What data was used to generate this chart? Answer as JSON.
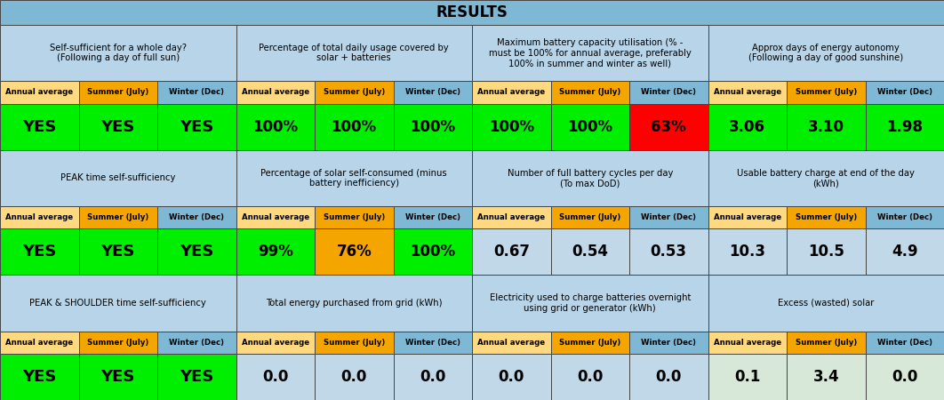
{
  "title": "RESULTS",
  "title_bg": "#7eb8d4",
  "header_bg": "#b8d4e8",
  "annual_avg_color": "#ffd97f",
  "summer_color": "#f5a500",
  "winter_color": "#7eb8d4",
  "green": "#00ee00",
  "red": "#ff0000",
  "orange": "#f5a500",
  "neutral": "#c0d8e8",
  "light_neutral": "#d8e8d8",
  "sections": [
    {
      "header": "Self-sufficient for a whole day?\n(Following a day of full sun)",
      "values": [
        "YES",
        "YES",
        "YES"
      ],
      "value_colors": [
        "#00ee00",
        "#00ee00",
        "#00ee00"
      ]
    },
    {
      "header": "Percentage of total daily usage covered by\nsolar + batteries",
      "values": [
        "100%",
        "100%",
        "100%"
      ],
      "value_colors": [
        "#00ee00",
        "#00ee00",
        "#00ee00"
      ]
    },
    {
      "header": "Maximum battery capacity utilisation (% -\nmust be 100% for annual average, preferably\n100% in summer and winter as well)",
      "values": [
        "100%",
        "100%",
        "63%"
      ],
      "value_colors": [
        "#00ee00",
        "#00ee00",
        "#ff0000"
      ]
    },
    {
      "header": "Approx days of energy autonomy\n(Following a day of good sunshine)",
      "values": [
        "3.06",
        "3.10",
        "1.98"
      ],
      "value_colors": [
        "#00ee00",
        "#00ee00",
        "#00ee00"
      ]
    },
    {
      "header": "PEAK time self-sufficiency",
      "values": [
        "YES",
        "YES",
        "YES"
      ],
      "value_colors": [
        "#00ee00",
        "#00ee00",
        "#00ee00"
      ]
    },
    {
      "header": "Percentage of solar self-consumed (minus\nbattery inefficiency)",
      "values": [
        "99%",
        "76%",
        "100%"
      ],
      "value_colors": [
        "#00ee00",
        "#f5a500",
        "#00ee00"
      ]
    },
    {
      "header": "Number of full battery cycles per day\n(To max DoD)",
      "values": [
        "0.67",
        "0.54",
        "0.53"
      ],
      "value_colors": [
        "#c0d8e8",
        "#c0d8e8",
        "#c0d8e8"
      ]
    },
    {
      "header": "Usable battery charge at end of the day\n(kWh)",
      "values": [
        "10.3",
        "10.5",
        "4.9"
      ],
      "value_colors": [
        "#c0d8e8",
        "#c0d8e8",
        "#c0d8e8"
      ]
    },
    {
      "header": "PEAK & SHOULDER time self-sufficiency",
      "values": [
        "YES",
        "YES",
        "YES"
      ],
      "value_colors": [
        "#00ee00",
        "#00ee00",
        "#00ee00"
      ]
    },
    {
      "header": "Total energy purchased from grid (kWh)",
      "values": [
        "0.0",
        "0.0",
        "0.0"
      ],
      "value_colors": [
        "#c0d8e8",
        "#c0d8e8",
        "#c0d8e8"
      ]
    },
    {
      "header": "Electricity used to charge batteries overnight\nusing grid or generator (kWh)",
      "values": [
        "0.0",
        "0.0",
        "0.0"
      ],
      "value_colors": [
        "#c0d8e8",
        "#c0d8e8",
        "#c0d8e8"
      ]
    },
    {
      "header": "Excess (wasted) solar",
      "values": [
        "0.1",
        "3.4",
        "0.0"
      ],
      "value_colors": [
        "#d8e8d8",
        "#d8e8d8",
        "#d8e8d8"
      ]
    }
  ],
  "col_labels": [
    "Annual average",
    "Summer (July)",
    "Winter (Dec)"
  ]
}
